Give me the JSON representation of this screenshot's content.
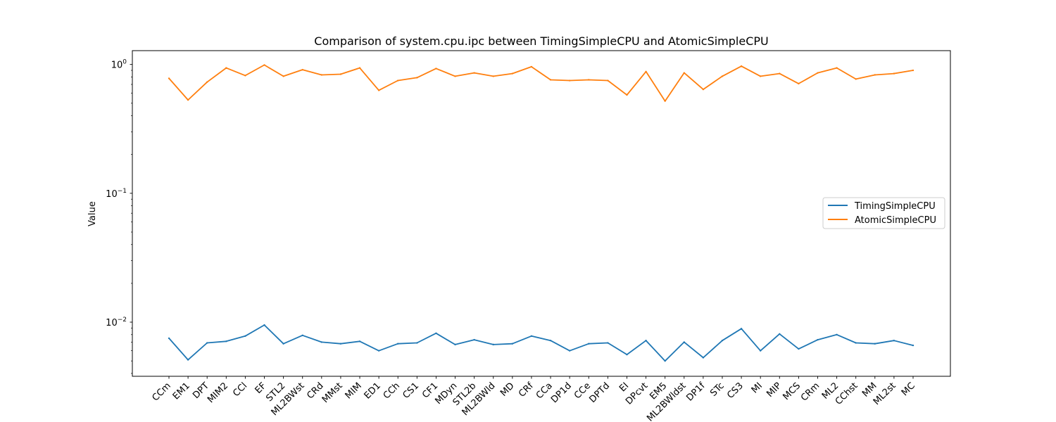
{
  "chart_data": {
    "type": "line",
    "title": "Comparison of system.cpu.ipc between TimingSimpleCPU and AtomicSimpleCPU",
    "xlabel": "",
    "ylabel": "Value",
    "yscale": "log",
    "ylim": [
      0.0038,
      1.28
    ],
    "yticks": [
      {
        "value": 1,
        "base": "10",
        "exp": "0"
      },
      {
        "value": 0.1,
        "base": "10",
        "exp": "−1"
      },
      {
        "value": 0.01,
        "base": "10",
        "exp": "−2"
      }
    ],
    "grid": false,
    "legend_position": "center-right",
    "categories": [
      "CCm",
      "EM1",
      "DPT",
      "MIM2",
      "CCl",
      "EF",
      "STL2",
      "ML2BWst",
      "CRd",
      "MMst",
      "MIM",
      "ED1",
      "CCh",
      "CS1",
      "CF1",
      "MDyn",
      "STL2b",
      "ML2BWld",
      "MD",
      "CRf",
      "CCa",
      "DP1d",
      "CCe",
      "DPTd",
      "EI",
      "DPcvt",
      "EM5",
      "ML2BWldst",
      "DP1f",
      "STc",
      "CS3",
      "MI",
      "MIP",
      "MCS",
      "CRm",
      "ML2",
      "CChst",
      "MM",
      "ML2st",
      "MC"
    ],
    "series": [
      {
        "name": "TimingSimpleCPU",
        "color": "#1f77b4",
        "values": [
          0.0075,
          0.0051,
          0.0069,
          0.0071,
          0.0078,
          0.0095,
          0.0068,
          0.0079,
          0.007,
          0.0068,
          0.0071,
          0.006,
          0.0068,
          0.0069,
          0.0082,
          0.0067,
          0.0073,
          0.0067,
          0.0068,
          0.0078,
          0.0072,
          0.006,
          0.0068,
          0.0069,
          0.0056,
          0.0072,
          0.005,
          0.007,
          0.0053,
          0.0072,
          0.0089,
          0.006,
          0.0081,
          0.0062,
          0.0073,
          0.008,
          0.0069,
          0.0068,
          0.0072,
          0.0066
        ]
      },
      {
        "name": "AtomicSimpleCPU",
        "color": "#ff7f0e",
        "values": [
          0.78,
          0.53,
          0.73,
          0.94,
          0.82,
          0.99,
          0.81,
          0.91,
          0.83,
          0.84,
          0.94,
          0.63,
          0.75,
          0.79,
          0.93,
          0.81,
          0.86,
          0.81,
          0.85,
          0.96,
          0.76,
          0.75,
          0.76,
          0.75,
          0.58,
          0.88,
          0.52,
          0.86,
          0.64,
          0.81,
          0.97,
          0.81,
          0.85,
          0.71,
          0.86,
          0.94,
          0.77,
          0.83,
          0.85,
          0.9
        ]
      }
    ]
  }
}
